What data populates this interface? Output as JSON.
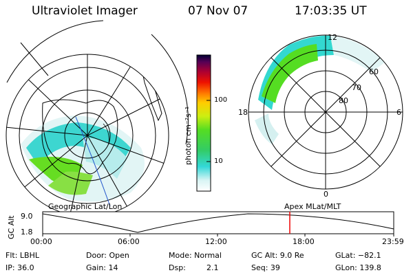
{
  "header": {
    "title": "Ultraviolet Imager",
    "date": "07 Nov 07",
    "time": "17:03:35 UT"
  },
  "colorbar": {
    "label": "photon cm⁻²s⁻¹",
    "ticks": [
      "100",
      "10"
    ]
  },
  "polar_plot": {
    "mlt_labels": {
      "top": "12",
      "left": "18",
      "right": "6",
      "bottom": "0"
    },
    "lat_labels": [
      "60",
      "70",
      "80"
    ]
  },
  "captions": {
    "geo": "Geographic Lat/Lon",
    "apex": "Apex MLat/MLT"
  },
  "altitude_chart": {
    "ylabel": "GC Alt",
    "yticks": [
      "9.0",
      "1.8"
    ],
    "xticks": [
      "00:00",
      "06:00",
      "12:00",
      "18:00",
      "23:59"
    ],
    "marker_time": "17:03"
  },
  "info": {
    "flt": "Flt: LBHL",
    "ip": "IP: 36.0",
    "door": "Door: Open",
    "gain": "Gain: 14",
    "mode": "Mode: Normal",
    "dsp_label": "Dsp:",
    "dsp_value": "2.1",
    "gcalt": "GC Alt: 9.0 Re",
    "seq": "Seq: 39",
    "glat": "GLat: −82.1",
    "glon": "GLon: 139.8"
  }
}
